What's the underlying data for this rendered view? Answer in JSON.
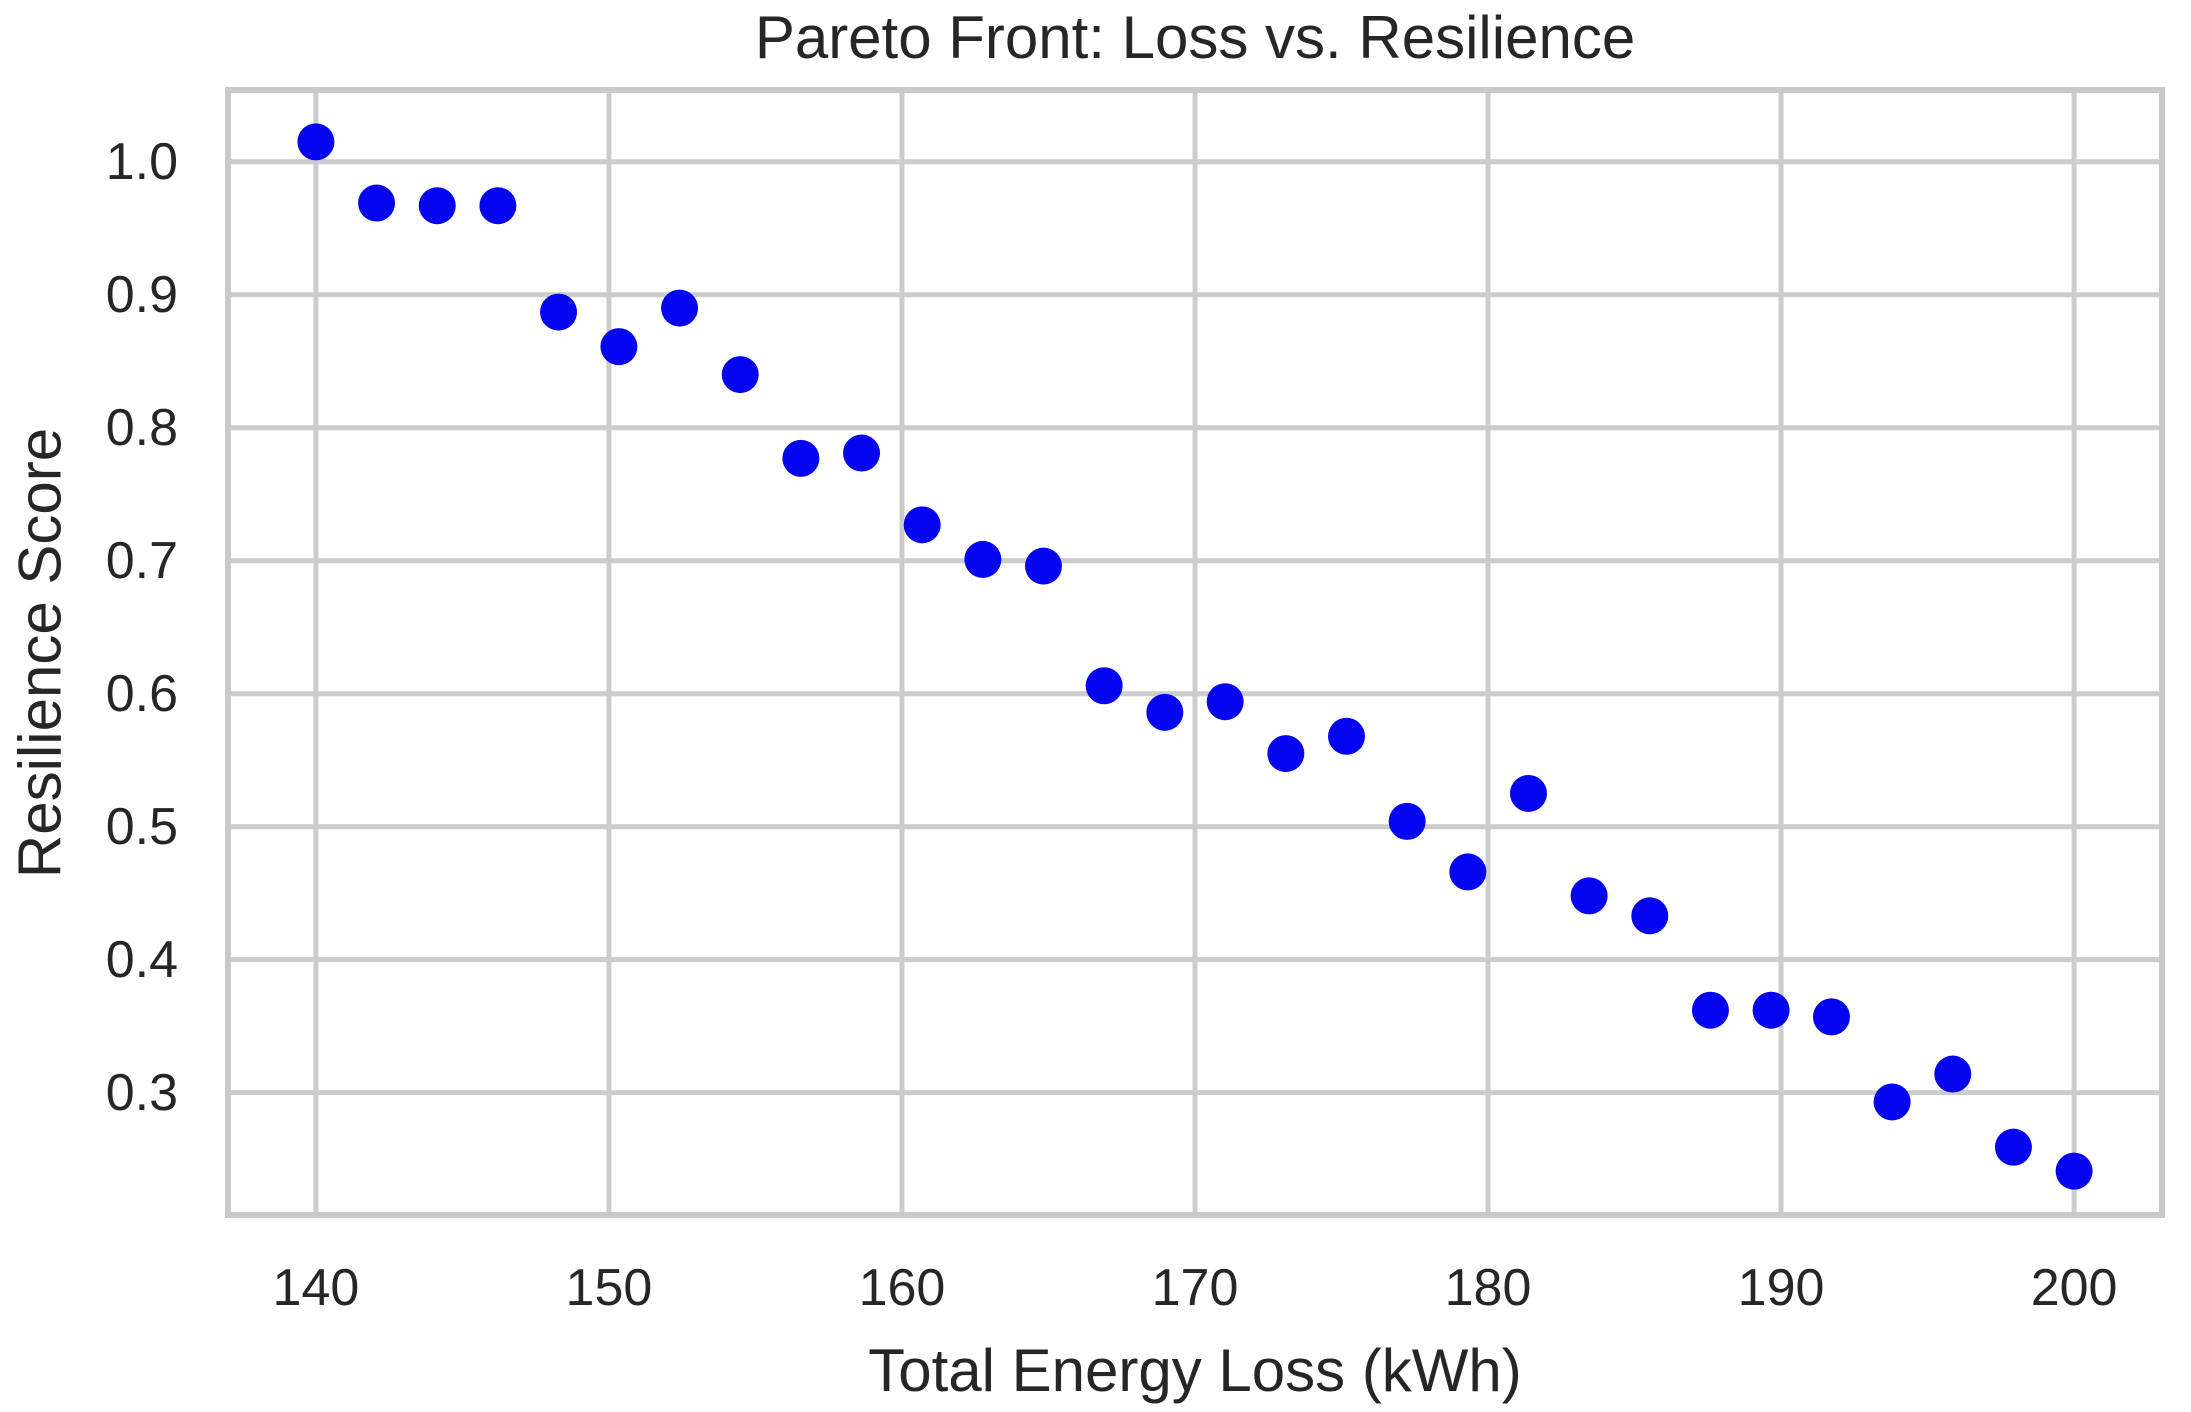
{
  "title": "Pareto Front: Loss vs. Resilience",
  "colors": {
    "dot": "#0505EF",
    "grid": "#CCCCCC",
    "spine": "#C9C9C9",
    "text": "#262626",
    "background": "#FFFFFF"
  },
  "chart_data": {
    "type": "scatter",
    "title": "Pareto Front: Loss vs. Resilience",
    "xlabel": "Total Energy Loss (kWh)",
    "ylabel": "Resilience Score",
    "x": [
      140.0,
      142.07,
      144.14,
      146.21,
      148.28,
      150.34,
      152.41,
      154.48,
      156.55,
      158.62,
      160.69,
      162.76,
      164.83,
      166.9,
      168.97,
      171.03,
      173.1,
      175.17,
      177.24,
      179.31,
      181.38,
      183.45,
      185.52,
      187.59,
      189.66,
      191.72,
      193.79,
      195.86,
      197.93,
      200.0
    ],
    "y": [
      1.015,
      0.969,
      0.967,
      0.967,
      0.887,
      0.861,
      0.89,
      0.84,
      0.777,
      0.781,
      0.727,
      0.701,
      0.696,
      0.606,
      0.586,
      0.594,
      0.555,
      0.568,
      0.504,
      0.466,
      0.525,
      0.448,
      0.433,
      0.362,
      0.362,
      0.357,
      0.293,
      0.314,
      0.259,
      0.241
    ],
    "xlim": [
      137,
      203
    ],
    "ylim": [
      0.208,
      1.054
    ],
    "xticks": [
      140,
      150,
      160,
      170,
      180,
      190,
      200
    ],
    "yticks": [
      0.3,
      0.4,
      0.5,
      0.6,
      0.7,
      0.8,
      0.9,
      1.0
    ],
    "xtick_labels": [
      "140",
      "150",
      "160",
      "170",
      "180",
      "190",
      "200"
    ],
    "ytick_labels": [
      "0.3",
      "0.4",
      "0.5",
      "0.6",
      "0.7",
      "0.8",
      "0.9",
      "1.0"
    ],
    "grid": true,
    "legend": false,
    "marker_radius_px": 18.5
  }
}
